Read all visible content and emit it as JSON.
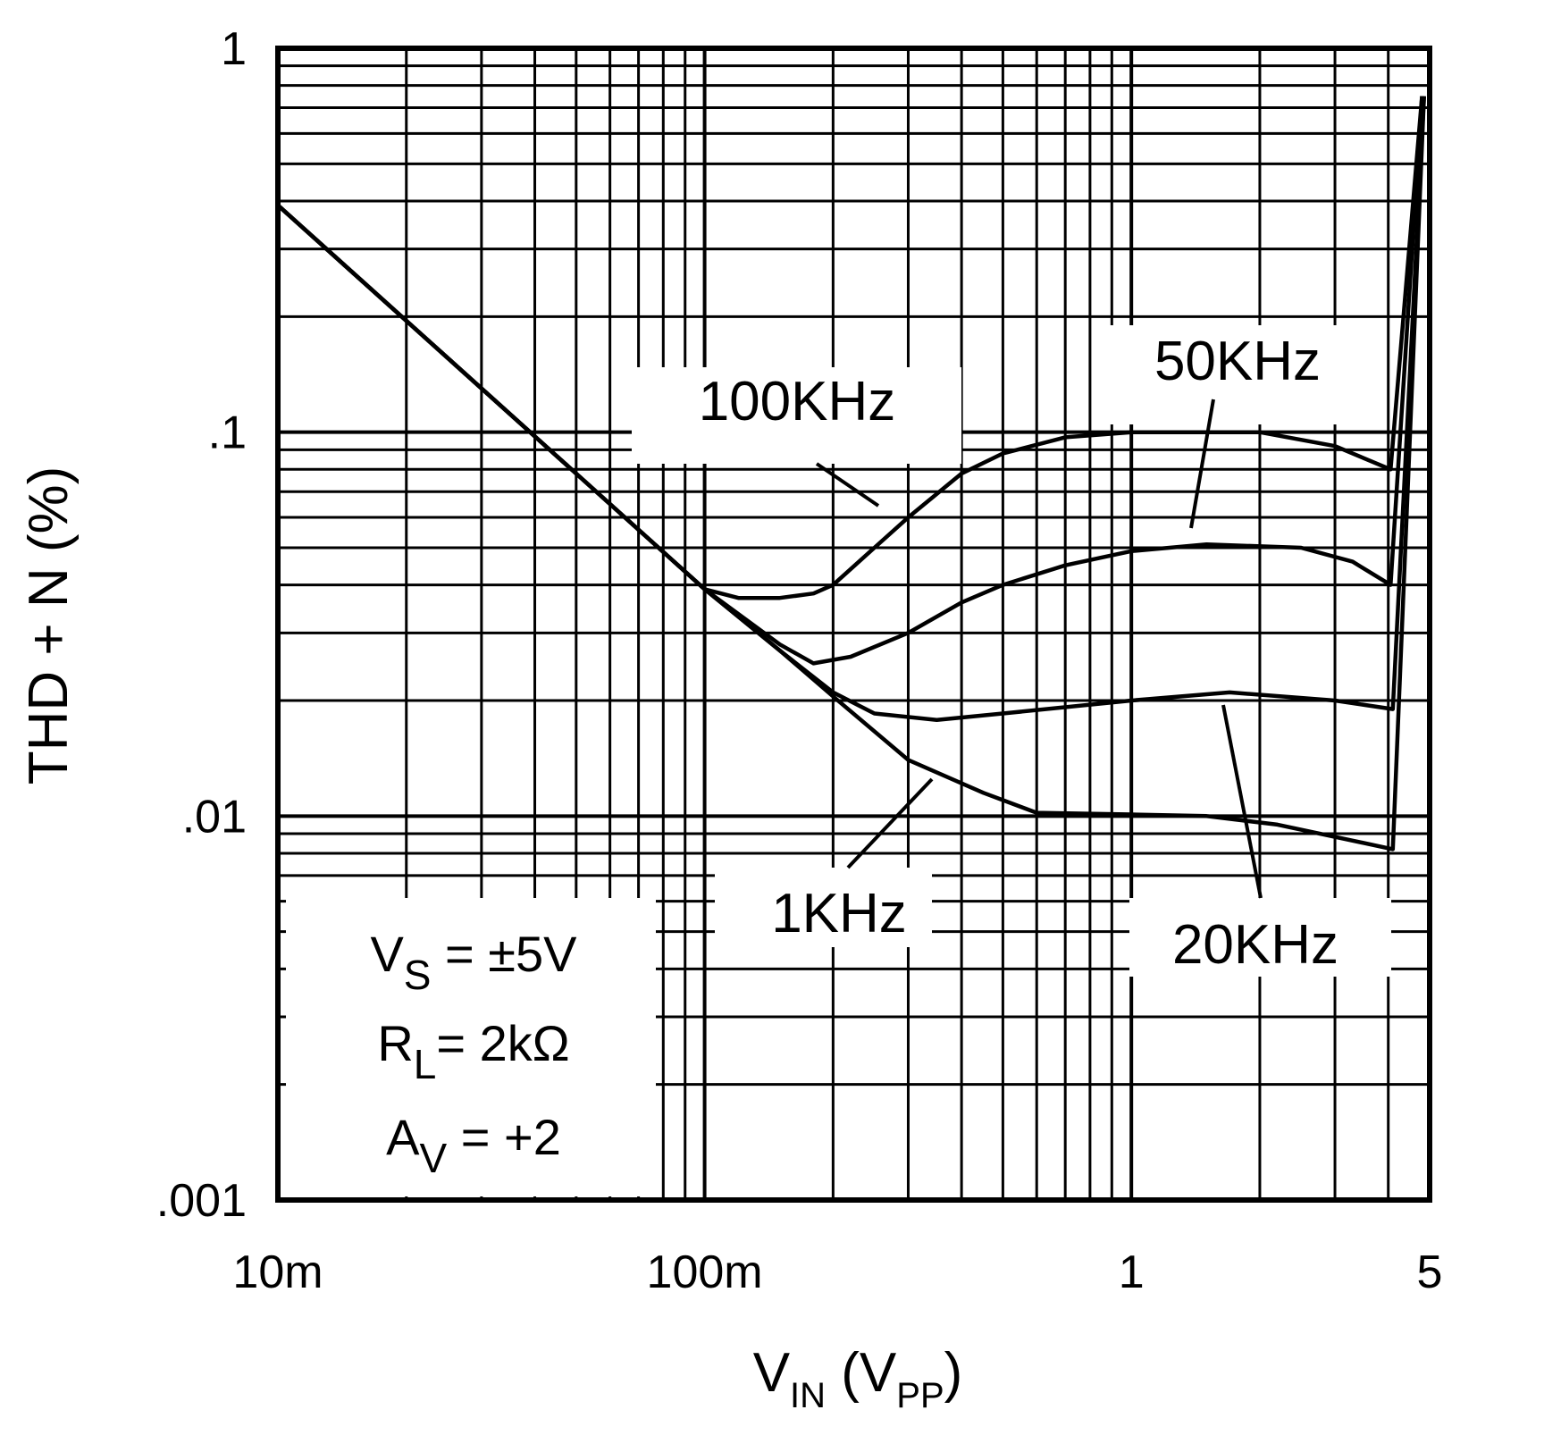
{
  "chart_data": {
    "type": "line",
    "title": "",
    "xlabel": {
      "main": "V",
      "sub": "IN",
      "unit_open": " (V",
      "unit_sub": "PP",
      "unit_close": ")"
    },
    "ylabel": "THD + N (%)",
    "x_scale": "log",
    "y_scale": "log",
    "xlim": [
      0.01,
      5
    ],
    "ylim": [
      0.001,
      1
    ],
    "grid": true,
    "x_ticks": [
      {
        "value": 0.01,
        "label": "10m"
      },
      {
        "value": 0.1,
        "label": "100m"
      },
      {
        "value": 1,
        "label": "1"
      },
      {
        "value": 5,
        "label": "5"
      }
    ],
    "y_ticks": [
      {
        "value": 1,
        "label": "1"
      },
      {
        "value": 0.1,
        "label": ".1"
      },
      {
        "value": 0.01,
        "label": ".01"
      },
      {
        "value": 0.001,
        "label": ".001"
      }
    ],
    "series": [
      {
        "name": "100KHz",
        "points": [
          [
            0.01,
            0.39
          ],
          [
            0.05,
            0.078
          ],
          [
            0.1,
            0.039
          ],
          [
            0.12,
            0.037
          ],
          [
            0.15,
            0.037
          ],
          [
            0.18,
            0.038
          ],
          [
            0.2,
            0.04
          ],
          [
            0.25,
            0.05
          ],
          [
            0.3,
            0.06
          ],
          [
            0.4,
            0.078
          ],
          [
            0.5,
            0.088
          ],
          [
            0.7,
            0.097
          ],
          [
            1,
            0.1
          ],
          [
            2,
            0.1
          ],
          [
            3,
            0.092
          ],
          [
            4.05,
            0.08
          ],
          [
            4.8,
            0.75
          ]
        ]
      },
      {
        "name": "50KHz",
        "points": [
          [
            0.01,
            0.39
          ],
          [
            0.05,
            0.078
          ],
          [
            0.1,
            0.039
          ],
          [
            0.15,
            0.028
          ],
          [
            0.18,
            0.025
          ],
          [
            0.22,
            0.026
          ],
          [
            0.3,
            0.03
          ],
          [
            0.4,
            0.036
          ],
          [
            0.5,
            0.04
          ],
          [
            0.7,
            0.045
          ],
          [
            1,
            0.049
          ],
          [
            1.5,
            0.051
          ],
          [
            2.5,
            0.05
          ],
          [
            3.3,
            0.046
          ],
          [
            4.05,
            0.04
          ],
          [
            4.8,
            0.75
          ]
        ]
      },
      {
        "name": "20KHz",
        "points": [
          [
            0.01,
            0.39
          ],
          [
            0.05,
            0.078
          ],
          [
            0.1,
            0.039
          ],
          [
            0.15,
            0.027
          ],
          [
            0.2,
            0.021
          ],
          [
            0.25,
            0.0185
          ],
          [
            0.35,
            0.0178
          ],
          [
            0.5,
            0.0185
          ],
          [
            1,
            0.02
          ],
          [
            1.7,
            0.021
          ],
          [
            3,
            0.02
          ],
          [
            4.1,
            0.019
          ],
          [
            4.85,
            0.75
          ]
        ]
      },
      {
        "name": "1KHz",
        "points": [
          [
            0.01,
            0.39
          ],
          [
            0.05,
            0.078
          ],
          [
            0.1,
            0.039
          ],
          [
            0.15,
            0.027
          ],
          [
            0.2,
            0.0205
          ],
          [
            0.3,
            0.014
          ],
          [
            0.45,
            0.0115
          ],
          [
            0.6,
            0.0102
          ],
          [
            1,
            0.0101
          ],
          [
            1.5,
            0.01
          ],
          [
            2.2,
            0.0095
          ],
          [
            4.1,
            0.0082
          ],
          [
            4.85,
            0.75
          ]
        ]
      }
    ],
    "annotations": {
      "conditions": [
        {
          "main": "V",
          "sub": "S",
          "rest": " = ±5V"
        },
        {
          "main": "R",
          "sub": "L",
          "rest": "= 2kΩ"
        },
        {
          "main": "A",
          "sub": "V",
          "rest": " = +2"
        }
      ]
    }
  }
}
